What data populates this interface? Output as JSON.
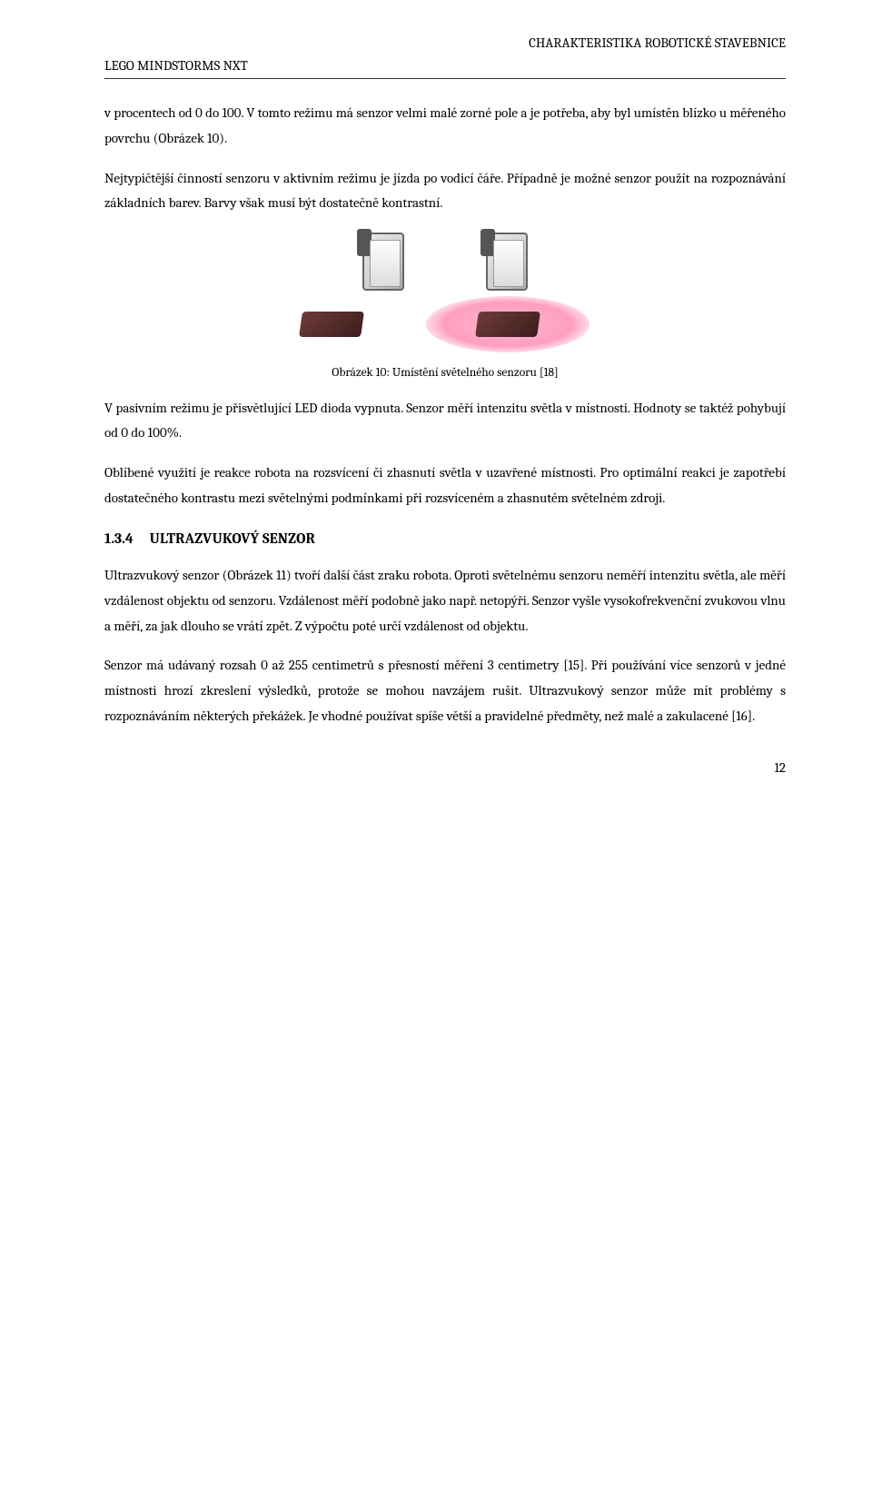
{
  "header": {
    "right": "CHARAKTERISTIKA ROBOTICKÉ STAVEBNICE",
    "left": "LEGO MINDSTORMS NXT"
  },
  "paragraphs": {
    "p1": "v procentech od 0 do 100. V tomto režimu má senzor velmi malé zorné pole a je potřeba, aby byl umístěn blízko u měřeného povrchu (Obrázek 10).",
    "p2": "Nejtypičtější činností senzoru v aktivním režimu je jízda po vodicí čáře. Případně je možné senzor použít na rozpoznávání základních barev. Barvy však musí být dostatečně kontrastní.",
    "p3": "V pasivním režimu je přisvětlující LED dioda vypnuta. Senzor měří intenzitu světla v místnosti. Hodnoty se taktéž pohybují od 0 do 100%.",
    "p4": "Oblíbené využití je reakce robota na rozsvícení či zhasnutí světla v uzavřené místnosti. Pro optimální reakci je zapotřebí dostatečného kontrastu mezi světelnými podmínkami při rozsvíceném a zhasnutém světelném zdroji.",
    "p5": "Ultrazvukový senzor (Obrázek 11) tvoří další část zraku robota. Oproti světelnému senzoru neměří intenzitu světla, ale měří vzdálenost objektu od senzoru. Vzdálenost měří podobně jako např. netopýři. Senzor vyšle vysokofrekvenční zvukovou vlnu a měří, za jak dlouho se vrátí zpět. Z výpočtu poté určí vzdálenost od objektu.",
    "p6": "Senzor má udávaný rozsah 0 až 255 centimetrů s přesností měření 3 centimetry [15]. Při používání více senzorů v jedné místnosti hrozí zkreslení výsledků, protože se mohou navzájem rušit. Ultrazvukový senzor může mít problémy s rozpoznáváním některých překážek. Je vhodné používat spíše větší a pravidelné předměty, než malé a zakulacené [16]."
  },
  "figure": {
    "caption": "Obrázek 10: Umístění světelného senzoru [18]",
    "highlight_color": "#ff9ebf",
    "sensor_body_color": "#d0d0d0",
    "brick_color": "#4a2323"
  },
  "section": {
    "number": "1.3.4",
    "title": "ULTRAZVUKOVÝ SENZOR"
  },
  "page_number": "12",
  "colors": {
    "text": "#000000",
    "background": "#ffffff",
    "rule": "#333333"
  },
  "typography": {
    "body_font": "Cambria, Georgia, serif",
    "body_size_pt": 12,
    "caption_size_pt": 10,
    "heading_size_pt": 12,
    "heading_weight": "bold"
  }
}
